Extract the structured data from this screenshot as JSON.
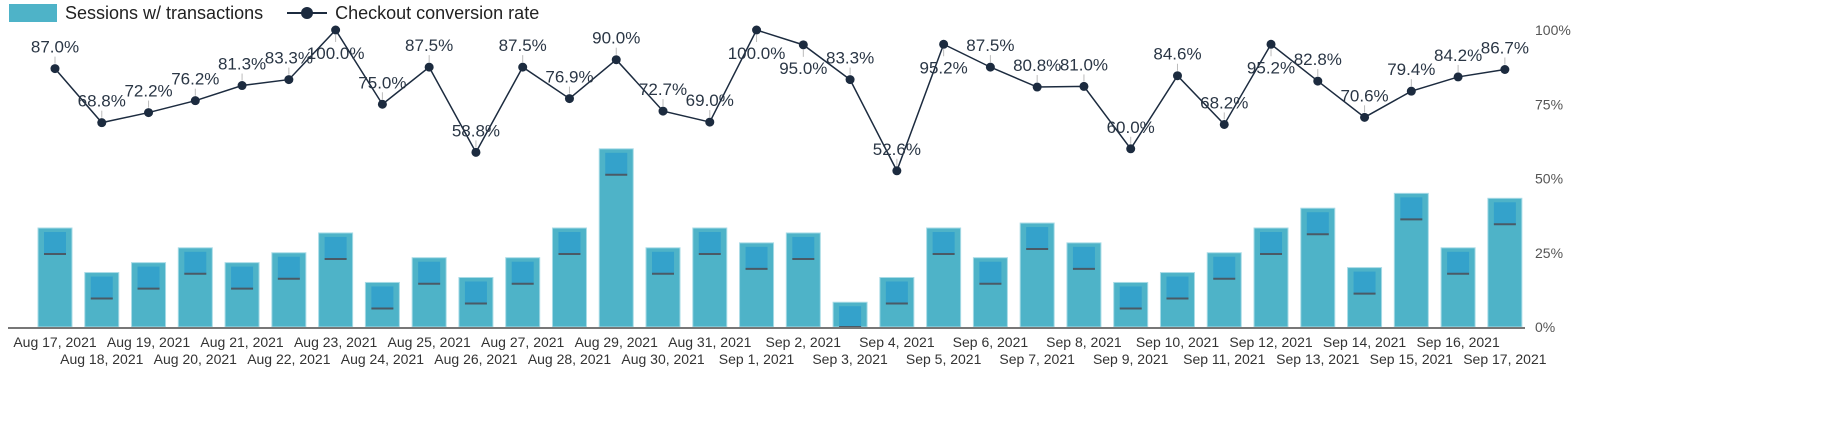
{
  "chart_data": {
    "type": "bar+line",
    "legend_position": "top-left",
    "categories": [
      "Aug 17, 2021",
      "Aug 18, 2021",
      "Aug 19, 2021",
      "Aug 20, 2021",
      "Aug 21, 2021",
      "Aug 22, 2021",
      "Aug 23, 2021",
      "Aug 24, 2021",
      "Aug 25, 2021",
      "Aug 26, 2021",
      "Aug 27, 2021",
      "Aug 28, 2021",
      "Aug 29, 2021",
      "Aug 30, 2021",
      "Aug 31, 2021",
      "Sep 1, 2021",
      "Sep 2, 2021",
      "Sep 3, 2021",
      "Sep 4, 2021",
      "Sep 5, 2021",
      "Sep 6, 2021",
      "Sep 7, 2021",
      "Sep 8, 2021",
      "Sep 9, 2021",
      "Sep 10, 2021",
      "Sep 11, 2021",
      "Sep 12, 2021",
      "Sep 13, 2021",
      "Sep 14, 2021",
      "Sep 15, 2021",
      "Sep 16, 2021",
      "Sep 17, 2021"
    ],
    "series": [
      {
        "name": "Sessions w/ transactions",
        "type": "bar",
        "axis": "left-hidden",
        "color": "#4eb3c8",
        "values": [
          20,
          11,
          13,
          16,
          13,
          15,
          19,
          9,
          14,
          10,
          14,
          20,
          36,
          16,
          20,
          17,
          19,
          5,
          10,
          20,
          14,
          21,
          17,
          9,
          11,
          15,
          20,
          24,
          12,
          27,
          16,
          26
        ]
      },
      {
        "name": "Checkout conversion rate",
        "type": "line",
        "axis": "right",
        "color": "#1c2b3f",
        "values": [
          87.0,
          68.8,
          72.2,
          76.2,
          81.3,
          83.3,
          100.0,
          75.0,
          87.5,
          58.8,
          87.5,
          76.9,
          90.0,
          72.7,
          69.0,
          100.0,
          95.0,
          83.3,
          52.6,
          95.2,
          87.5,
          80.8,
          81.0,
          60.0,
          84.6,
          68.2,
          95.2,
          82.8,
          70.6,
          79.4,
          84.2,
          86.7
        ],
        "data_labels": [
          "87.0%",
          "68.8%",
          "72.2%",
          "76.2%",
          "81.3%",
          "83.3%",
          "100.0%",
          "75.0%",
          "87.5%",
          "58.8%",
          "87.5%",
          "76.9%",
          "90.0%",
          "72.7%",
          "69.0%",
          "100.0%",
          "95.0%",
          "83.3%",
          "52.6%",
          "95.2%",
          "87.5%",
          "80.8%",
          "81.0%",
          "60.0%",
          "84.6%",
          "68.2%",
          "95.2%",
          "82.8%",
          "70.6%",
          "79.4%",
          "84.2%",
          "86.7%"
        ]
      }
    ],
    "left_ylim": [
      0,
      60
    ],
    "right_ylim": [
      0,
      100
    ],
    "right_ticks": [
      "0%",
      "25%",
      "50%",
      "75%",
      "100%"
    ],
    "right_tick_values": [
      0,
      25,
      50,
      75,
      100
    ],
    "grid": false
  }
}
